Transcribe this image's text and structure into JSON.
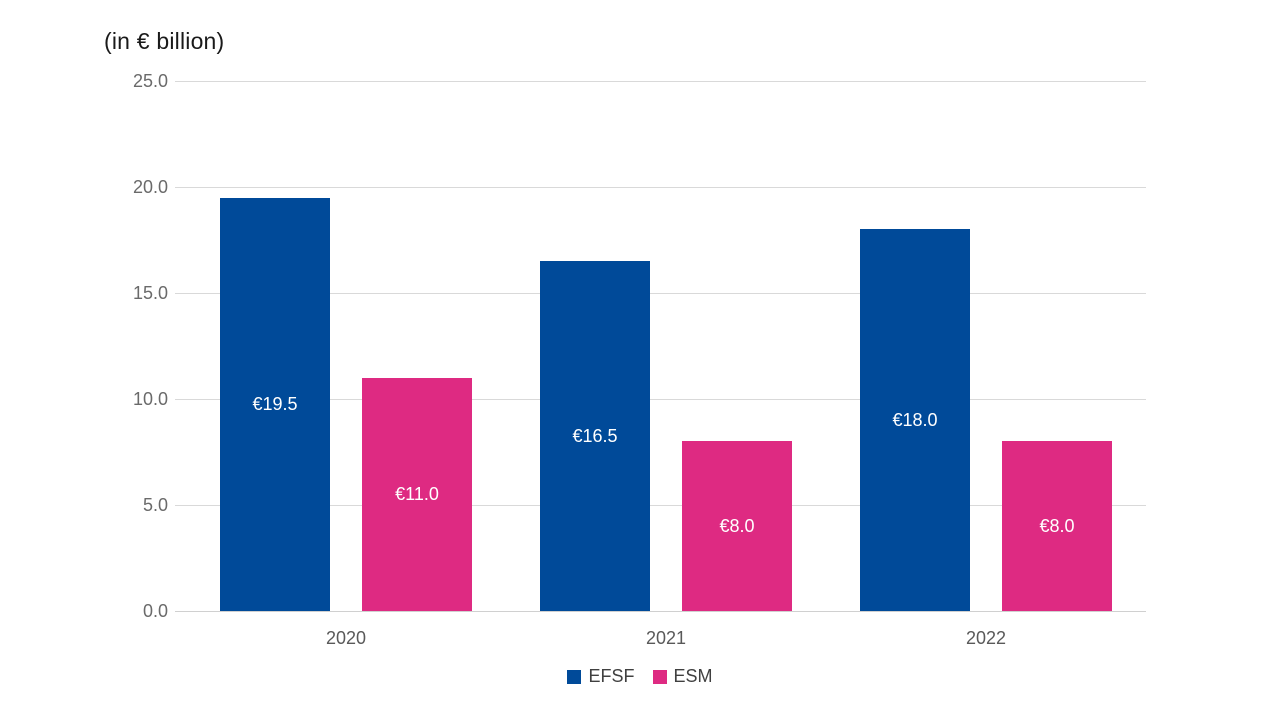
{
  "title": "(in € billion)",
  "colors": {
    "efsf_blue": "#004A99",
    "esm_pink": "#DE2A82",
    "gridline": "#D9D9D9",
    "axis_line": "#D0D0D0",
    "tick_text": "#6A6A6A",
    "category_text": "#595959",
    "bar_label_text": "#FFFFFF",
    "legend_text": "#404040",
    "title_text": "#1A1A1A",
    "background": "#FFFFFF"
  },
  "chart_data": {
    "type": "bar",
    "title": "(in € billion)",
    "categories": [
      "2020",
      "2021",
      "2022"
    ],
    "series": [
      {
        "name": "EFSF",
        "color": "#004A99",
        "values": [
          19.5,
          16.5,
          18.0
        ],
        "data_labels": [
          "€19.5",
          "€16.5",
          "€18.0"
        ]
      },
      {
        "name": "ESM",
        "color": "#DE2A82",
        "values": [
          11.0,
          8.0,
          8.0
        ],
        "data_labels": [
          "€11.0",
          "€8.0",
          "€8.0"
        ]
      }
    ],
    "xlabel": "",
    "ylabel": "",
    "ylim": [
      0,
      25
    ],
    "ytick_step": 5,
    "ytick_labels": [
      "25.0",
      "20.0",
      "15.0",
      "10.0",
      "5.0",
      "0.0"
    ],
    "grid": true,
    "data_labels_inside": true,
    "legend_position": "bottom-center"
  }
}
